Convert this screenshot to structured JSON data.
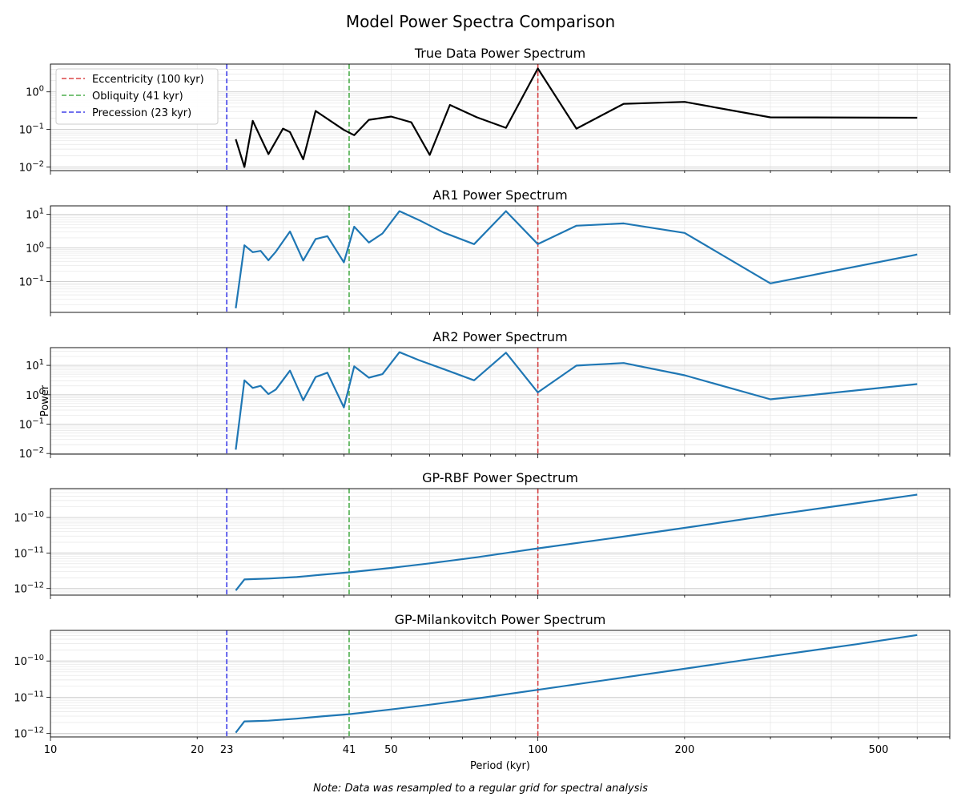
{
  "figure": {
    "title": "Model Power Spectra Comparison",
    "note": "Note: Data was resampled to a regular grid for spectral analysis"
  },
  "chart_data": [
    {
      "type": "line",
      "title": "True Data Power Spectrum",
      "xlabel": "",
      "ylabel": "",
      "xscale": "log",
      "yscale": "log",
      "xlim": [
        10,
        700
      ],
      "ylim": [
        0.008,
        5.5
      ],
      "ytick_labels": [
        "10^-2",
        "10^-1",
        "10^0"
      ],
      "yticks": [
        0.01,
        0.1,
        1
      ],
      "color": "#000000",
      "legend": "upper left",
      "x": [
        24,
        25,
        26,
        28,
        30,
        31,
        33,
        35,
        40,
        42,
        45,
        50,
        55,
        60,
        66,
        75,
        86,
        100,
        120,
        150,
        200,
        300,
        600
      ],
      "y": [
        0.055,
        0.01,
        0.17,
        0.022,
        0.105,
        0.085,
        0.016,
        0.31,
        0.097,
        0.07,
        0.18,
        0.22,
        0.155,
        0.021,
        0.45,
        0.21,
        0.11,
        4.2,
        0.105,
        0.48,
        0.54,
        0.21,
        0.205
      ]
    },
    {
      "type": "line",
      "title": "AR1 Power Spectrum",
      "xlabel": "",
      "ylabel": "",
      "xscale": "log",
      "yscale": "log",
      "xlim": [
        10,
        700
      ],
      "ylim": [
        0.012,
        18
      ],
      "ytick_labels": [
        "10^-1",
        "10^0",
        "10^1"
      ],
      "yticks": [
        0.1,
        1,
        10
      ],
      "color": "#1f77b4",
      "x": [
        24,
        25,
        26,
        27,
        28,
        29,
        31,
        33,
        35,
        37,
        40,
        42,
        45,
        48,
        52,
        57,
        64,
        74,
        86,
        100,
        120,
        150,
        200,
        300,
        600
      ],
      "y": [
        0.016,
        1.2,
        0.75,
        0.82,
        0.43,
        0.77,
        3.1,
        0.42,
        1.85,
        2.25,
        0.37,
        4.3,
        1.45,
        2.7,
        12.5,
        6.8,
        2.9,
        1.3,
        12.5,
        1.3,
        4.6,
        5.4,
        2.8,
        0.088,
        0.64
      ]
    },
    {
      "type": "line",
      "title": "AR2 Power Spectrum",
      "xlabel": "",
      "ylabel": "Power",
      "xscale": "log",
      "yscale": "log",
      "xlim": [
        10,
        700
      ],
      "ylim": [
        0.0095,
        40
      ],
      "ytick_labels": [
        "10^-2",
        "10^-1",
        "10^0",
        "10^1"
      ],
      "yticks": [
        0.01,
        0.1,
        1,
        10
      ],
      "color": "#1f77b4",
      "x": [
        24,
        25,
        26,
        27,
        28,
        29,
        31,
        33,
        35,
        37,
        40,
        42,
        45,
        48,
        52,
        57,
        64,
        74,
        86,
        100,
        120,
        150,
        200,
        300,
        600
      ],
      "y": [
        0.0135,
        3.1,
        1.7,
        2.0,
        1.05,
        1.5,
        6.6,
        0.65,
        4.0,
        5.6,
        0.37,
        9.2,
        3.8,
        5.0,
        28,
        15,
        7.5,
        3.1,
        27,
        1.2,
        9.8,
        12,
        4.6,
        0.7,
        2.3
      ]
    },
    {
      "type": "line",
      "title": "GP-RBF Power Spectrum",
      "xlabel": "",
      "ylabel": "",
      "xscale": "log",
      "yscale": "log",
      "xlim": [
        10,
        700
      ],
      "ylim": [
        6.5e-13,
        6.5e-10
      ],
      "ytick_labels": [
        "10^-12",
        "10^-11",
        "10^-10"
      ],
      "yticks": [
        1e-12,
        1e-11,
        1e-10
      ],
      "color": "#1f77b4",
      "x": [
        24,
        25,
        28,
        32,
        36,
        41,
        50,
        60,
        75,
        100,
        150,
        200,
        300,
        450,
        600
      ],
      "y": [
        8.8e-13,
        1.8e-12,
        1.9e-12,
        2.1e-12,
        2.45e-12,
        2.85e-12,
        3.8e-12,
        5.1e-12,
        7.6e-12,
        1.35e-11,
        2.9e-11,
        5.1e-11,
        1.15e-10,
        2.5e-10,
        4.4e-10
      ]
    },
    {
      "type": "line",
      "title": "GP-Milankovitch Power Spectrum",
      "xlabel": "Period (kyr)",
      "ylabel": "",
      "xscale": "log",
      "yscale": "log",
      "xlim": [
        10,
        700
      ],
      "ylim": [
        8e-13,
        7e-10
      ],
      "ytick_labels": [
        "10^-12",
        "10^-11",
        "10^-10"
      ],
      "yticks": [
        1e-12,
        1e-11,
        1e-10
      ],
      "color": "#1f77b4",
      "x": [
        24,
        25,
        28,
        32,
        36,
        41,
        50,
        60,
        75,
        100,
        150,
        200,
        300,
        450,
        600
      ],
      "y": [
        1.05e-12,
        2.15e-12,
        2.25e-12,
        2.55e-12,
        2.95e-12,
        3.4e-12,
        4.6e-12,
        6.2e-12,
        9.2e-12,
        1.6e-11,
        3.5e-11,
        6.1e-11,
        1.35e-10,
        2.9e-10,
        5.2e-10
      ],
      "xtick_labels": [
        "10",
        "20",
        "23",
        "41",
        "50",
        "100",
        "200",
        "500"
      ],
      "xticks": [
        10,
        20,
        23,
        41,
        50,
        100,
        200,
        500
      ]
    }
  ],
  "reference_lines": [
    {
      "name": "Eccentricity (100 kyr)",
      "x": 100,
      "color": "#d62728"
    },
    {
      "name": "Obliquity (41 kyr)",
      "x": 41,
      "color": "#2ca02c"
    },
    {
      "name": "Precession (23 kyr)",
      "x": 23,
      "color": "#1f1fe6"
    }
  ]
}
